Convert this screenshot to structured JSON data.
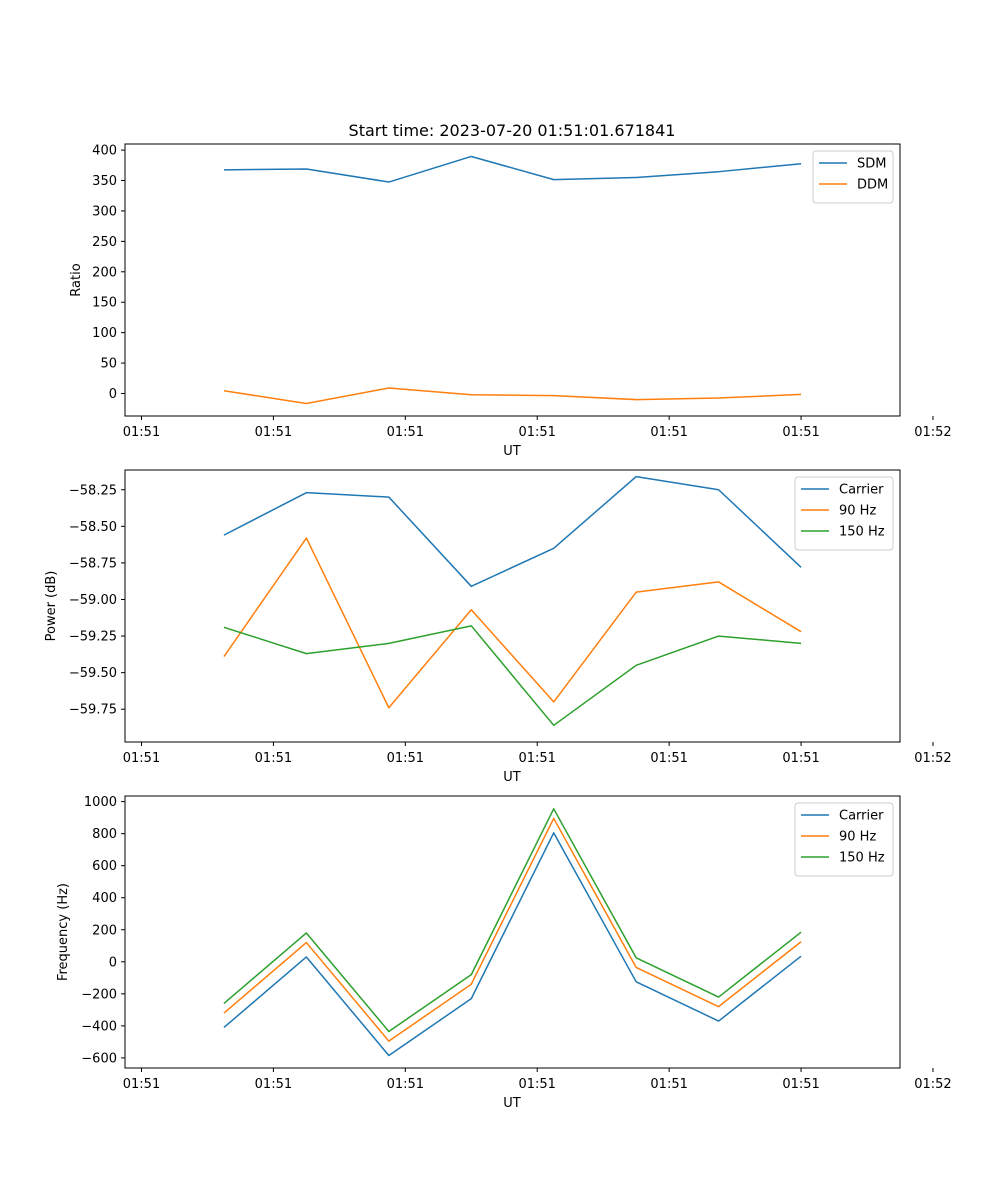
{
  "figure_title": "Start time: 2023-07-20 01:51:01.671841",
  "colors": {
    "series1": "#1f77b4",
    "series2": "#ff7f0e",
    "series3": "#2ca02c"
  },
  "chart_data": [
    {
      "type": "line",
      "title": "Start time: 2023-07-20 01:51:01.671841",
      "xlabel": "UT",
      "ylabel": "Ratio",
      "x": [
        0.5,
        1,
        1.5,
        2,
        2.5,
        3,
        3.5,
        4
      ],
      "xlim": [
        -0.1,
        4.6
      ],
      "xticks": [
        0,
        0.8,
        1.6,
        2.4,
        3.2,
        4.0,
        4.8
      ],
      "xtick_labels": [
        "01:51",
        "01:51",
        "01:51",
        "01:51",
        "01:51",
        "01:51",
        "01:52"
      ],
      "ylim": [
        -37,
        410
      ],
      "yticks": [
        0,
        50,
        100,
        150,
        200,
        250,
        300,
        350,
        400
      ],
      "ytick_labels": [
        "0",
        "50",
        "100",
        "150",
        "200",
        "250",
        "300",
        "350",
        "400"
      ],
      "legend_position": "top-right",
      "series": [
        {
          "name": "SDM",
          "color": "#1f77b4",
          "values": [
            367.5,
            369,
            347.5,
            389.5,
            351.5,
            355,
            364.5,
            377.5
          ]
        },
        {
          "name": "DDM",
          "color": "#ff7f0e",
          "values": [
            4.5,
            -16.5,
            9.0,
            -2.0,
            -3.5,
            -10.0,
            -7.5,
            -1.5
          ]
        }
      ]
    },
    {
      "type": "line",
      "title": "",
      "xlabel": "UT",
      "ylabel": "Power (dB)",
      "x": [
        0.5,
        1,
        1.5,
        2,
        2.5,
        3,
        3.5,
        4
      ],
      "xlim": [
        -0.1,
        4.6
      ],
      "xticks": [
        0,
        0.8,
        1.6,
        2.4,
        3.2,
        4.0,
        4.8
      ],
      "xtick_labels": [
        "01:51",
        "01:51",
        "01:51",
        "01:51",
        "01:51",
        "01:51",
        "01:52"
      ],
      "ylim": [
        -59.974,
        -58.115
      ],
      "yticks": [
        -59.75,
        -59.5,
        -59.25,
        -59.0,
        -58.75,
        -58.5,
        -58.25
      ],
      "ytick_labels": [
        "−59.75",
        "−59.50",
        "−59.25",
        "−59.00",
        "−58.75",
        "−58.50",
        "−58.25"
      ],
      "legend_position": "top-right",
      "series": [
        {
          "name": "Carrier",
          "color": "#1f77b4",
          "values": [
            -58.56,
            -58.27,
            -58.3,
            -58.91,
            -58.65,
            -58.16,
            -58.25,
            -58.78
          ]
        },
        {
          "name": "90 Hz",
          "color": "#ff7f0e",
          "values": [
            -59.39,
            -58.58,
            -59.74,
            -59.07,
            -59.7,
            -58.95,
            -58.88,
            -59.22
          ]
        },
        {
          "name": "150 Hz",
          "color": "#2ca02c",
          "values": [
            -59.19,
            -59.37,
            -59.3,
            -59.18,
            -59.86,
            -59.45,
            -59.25,
            -59.3
          ]
        }
      ]
    },
    {
      "type": "line",
      "title": "",
      "xlabel": "UT",
      "ylabel": "Frequency (Hz)",
      "x": [
        0.5,
        1,
        1.5,
        2,
        2.5,
        3,
        3.5,
        4
      ],
      "xlim": [
        -0.1,
        4.6
      ],
      "xticks": [
        0,
        0.8,
        1.6,
        2.4,
        3.2,
        4.0,
        4.8
      ],
      "xtick_labels": [
        "01:51",
        "01:51",
        "01:51",
        "01:51",
        "01:51",
        "01:51",
        "01:52"
      ],
      "ylim": [
        -663,
        1035
      ],
      "yticks": [
        -600,
        -400,
        -200,
        0,
        200,
        400,
        600,
        800,
        1000
      ],
      "ytick_labels": [
        "−600",
        "−400",
        "−200",
        "0",
        "200",
        "400",
        "600",
        "800",
        "1000"
      ],
      "legend_position": "top-right",
      "series": [
        {
          "name": "Carrier",
          "color": "#1f77b4",
          "values": [
            -410,
            30,
            -585,
            -230,
            805,
            -125,
            -370,
            35
          ]
        },
        {
          "name": "90 Hz",
          "color": "#ff7f0e",
          "values": [
            -320,
            120,
            -495,
            -140,
            895,
            -35,
            -280,
            125
          ]
        },
        {
          "name": "150 Hz",
          "color": "#2ca02c",
          "values": [
            -260,
            180,
            -435,
            -80,
            955,
            25,
            -220,
            185
          ]
        }
      ]
    }
  ]
}
